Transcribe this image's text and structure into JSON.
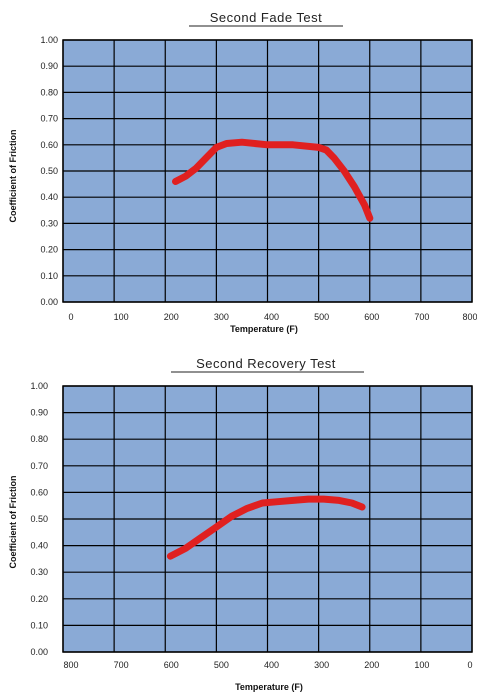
{
  "chart_data": [
    {
      "type": "line",
      "title": "Second Fade Test",
      "xlabel": "Temperature (F)",
      "ylabel": "Coefficient of Friction",
      "xlim": [
        0,
        800
      ],
      "ylim": [
        0.0,
        1.0
      ],
      "x_ticks": [
        "0",
        "100",
        "200",
        "300",
        "400",
        "500",
        "600",
        "700",
        "800"
      ],
      "y_ticks": [
        "0.00",
        "0.10",
        "0.20",
        "0.30",
        "0.40",
        "0.50",
        "0.60",
        "0.70",
        "0.80",
        "0.90",
        "1.00"
      ],
      "grid": true,
      "plot_bg": "#8aaad6",
      "line_color": "#e02020",
      "series": [
        {
          "x": [
            220,
            240,
            260,
            280,
            300,
            320,
            350,
            400,
            450,
            500,
            515,
            530,
            550,
            570,
            590,
            600
          ],
          "y": [
            0.46,
            0.48,
            0.51,
            0.55,
            0.59,
            0.605,
            0.61,
            0.6,
            0.6,
            0.59,
            0.58,
            0.55,
            0.5,
            0.44,
            0.37,
            0.32
          ]
        }
      ]
    },
    {
      "type": "line",
      "title": "Second Recovery Test",
      "xlabel": "Temperature (F)",
      "ylabel": "Coefficient of Friction",
      "xlim": [
        800,
        0
      ],
      "ylim": [
        0.0,
        1.0
      ],
      "x_ticks": [
        "800",
        "700",
        "600",
        "500",
        "400",
        "300",
        "200",
        "100",
        "0"
      ],
      "y_ticks": [
        "0.00",
        "0.10",
        "0.20",
        "0.30",
        "0.40",
        "0.50",
        "0.60",
        "0.70",
        "0.80",
        "0.90",
        "1.00"
      ],
      "grid": true,
      "plot_bg": "#8aaad6",
      "line_color": "#e02020",
      "series": [
        {
          "x": [
            590,
            560,
            530,
            500,
            470,
            440,
            410,
            380,
            350,
            320,
            290,
            260,
            235,
            215
          ],
          "y": [
            0.36,
            0.39,
            0.43,
            0.47,
            0.51,
            0.54,
            0.56,
            0.565,
            0.57,
            0.575,
            0.575,
            0.57,
            0.56,
            0.545
          ]
        }
      ]
    }
  ]
}
